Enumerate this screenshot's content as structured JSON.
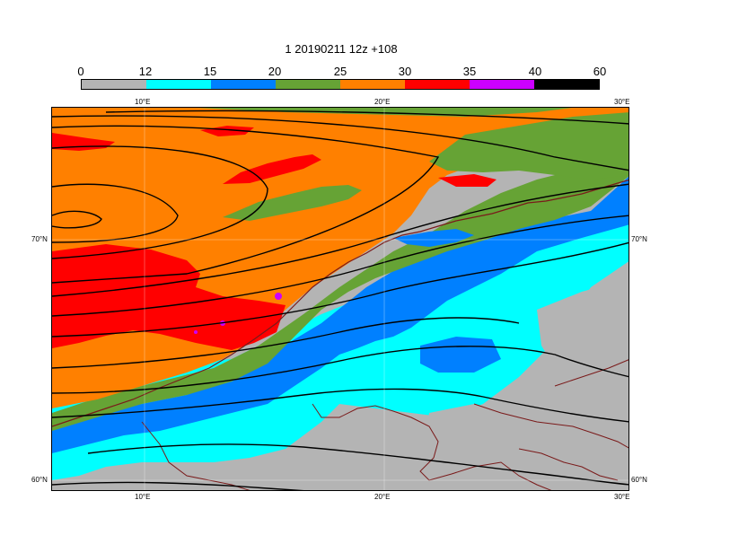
{
  "title": "1 20190211 12z +108",
  "colorbar": {
    "labels": [
      "0",
      "12",
      "15",
      "20",
      "25",
      "30",
      "35",
      "40",
      "60"
    ],
    "colors": [
      "#b4b4b4",
      "#00ffff",
      "#0080ff",
      "#66a335",
      "#ff8000",
      "#ff0000",
      "#cc00ff",
      "#000000"
    ]
  },
  "axes": {
    "lon_top": [
      "10°E",
      "20°E",
      "30°E"
    ],
    "lon_bottom": [
      "10°E",
      "20°E",
      "30°E"
    ],
    "lat_left": [
      "70°N",
      "60°N"
    ],
    "lat_right": [
      "70°N",
      "60°N"
    ]
  },
  "colors": {
    "land_gray": "#b4b4b4",
    "cyan": "#00ffff",
    "blue": "#0080ff",
    "green": "#66a335",
    "orange": "#ff8000",
    "red": "#ff0000",
    "magenta": "#cc00ff",
    "coast": "#7a1a1a",
    "contour": "#000000"
  }
}
